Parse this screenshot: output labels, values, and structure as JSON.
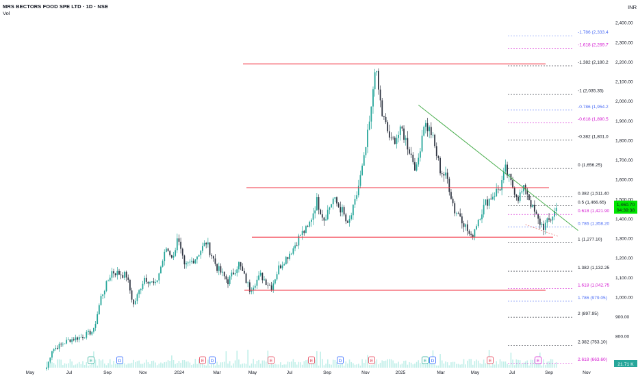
{
  "header": {
    "title": "MRS BECTORS FOOD SPE LTD · 1D · NSE",
    "volume_label": "Vol",
    "currency": "INR"
  },
  "chart_data": {
    "type": "candlestick",
    "x_tick_labels": [
      "May",
      "Jul",
      "Sep",
      "Nov",
      "2024",
      "Mar",
      "May",
      "Jul",
      "Sep",
      "Nov",
      "2025",
      "Mar",
      "May",
      "Jul",
      "Sep",
      "Nov"
    ],
    "y_ticks": [
      800,
      900,
      1000,
      1100,
      1200,
      1300,
      1400,
      1500,
      1600,
      1700,
      1800,
      1900,
      2000,
      2100,
      2200,
      2300,
      2400
    ],
    "ylim": [
      640,
      2460
    ],
    "price_path": [
      [
        0,
        640
      ],
      [
        3,
        730
      ],
      [
        12,
        780
      ],
      [
        20,
        800
      ],
      [
        26,
        830
      ],
      [
        30,
        1000
      ],
      [
        36,
        1130
      ],
      [
        44,
        1110
      ],
      [
        48,
        960
      ],
      [
        54,
        1100
      ],
      [
        60,
        1060
      ],
      [
        66,
        1250
      ],
      [
        70,
        1200
      ],
      [
        72,
        1310
      ],
      [
        76,
        1150
      ],
      [
        82,
        1200
      ],
      [
        88,
        1280
      ],
      [
        94,
        1150
      ],
      [
        100,
        1080
      ],
      [
        106,
        1170
      ],
      [
        112,
        1040
      ],
      [
        118,
        1110
      ],
      [
        124,
        1050
      ],
      [
        128,
        1150
      ],
      [
        132,
        1200
      ],
      [
        136,
        1250
      ],
      [
        140,
        1320
      ],
      [
        144,
        1350
      ],
      [
        149,
        1490
      ],
      [
        153,
        1400
      ],
      [
        158,
        1500
      ],
      [
        163,
        1440
      ],
      [
        166,
        1360
      ],
      [
        170,
        1480
      ],
      [
        175,
        1700
      ],
      [
        179,
        1950
      ],
      [
        181,
        2180
      ],
      [
        185,
        1930
      ],
      [
        190,
        1790
      ],
      [
        196,
        1850
      ],
      [
        200,
        1750
      ],
      [
        204,
        1650
      ],
      [
        208,
        1890
      ],
      [
        212,
        1840
      ],
      [
        217,
        1650
      ],
      [
        221,
        1600
      ],
      [
        225,
        1440
      ],
      [
        228,
        1420
      ],
      [
        231,
        1360
      ],
      [
        234,
        1300
      ],
      [
        238,
        1400
      ],
      [
        242,
        1480
      ],
      [
        246,
        1520
      ],
      [
        250,
        1560
      ],
      [
        253,
        1650
      ],
      [
        256,
        1580
      ],
      [
        260,
        1510
      ],
      [
        264,
        1560
      ],
      [
        268,
        1450
      ],
      [
        271,
        1390
      ],
      [
        274,
        1360
      ],
      [
        278,
        1400
      ],
      [
        281,
        1455
      ]
    ],
    "last_price": "1,460.70",
    "countdown": "04:39:38",
    "last_volume": "21.71 K",
    "horizontal_lines": [
      2190,
      1558,
      1306,
      1035
    ],
    "trendline": {
      "from": {
        "x": 205,
        "y": 1980
      },
      "to": {
        "x": 293,
        "y": 1340
      }
    },
    "fib_levels": [
      {
        "label": "-1.786 (2,333.4",
        "price": 2333.4,
        "color": "#4d6ef5"
      },
      {
        "label": "-1.618 (2,269.7",
        "price": 2269.7,
        "color": "#d418d0"
      },
      {
        "label": "-1.382 (2,180.2",
        "price": 2180.2,
        "color": "#131722"
      },
      {
        "label": "-1 (2,035.35)",
        "price": 2035.35,
        "color": "#131722"
      },
      {
        "label": "-0.786 (1,954.2",
        "price": 1954.2,
        "color": "#4d6ef5"
      },
      {
        "label": "-0.618 (1,890.5",
        "price": 1890.5,
        "color": "#d418d0"
      },
      {
        "label": "-0.382 (1,801.0",
        "price": 1801.0,
        "color": "#131722"
      },
      {
        "label": "0 (1,656.25)",
        "price": 1656.25,
        "color": "#131722"
      },
      {
        "label": "0.382 (1,511.40",
        "price": 1511.4,
        "color": "#131722"
      },
      {
        "label": "0.5 (1,466.65)",
        "price": 1466.65,
        "color": "#131722"
      },
      {
        "label": "0.618 (1,421.90",
        "price": 1421.9,
        "color": "#d418d0"
      },
      {
        "label": "0.786 (1,358.20",
        "price": 1358.2,
        "color": "#4d6ef5"
      },
      {
        "label": "1 (1,277.10)",
        "price": 1277.1,
        "color": "#131722"
      },
      {
        "label": "1.382 (1,132.25",
        "price": 1132.25,
        "color": "#131722"
      },
      {
        "label": "1.618 (1,042.75",
        "price": 1042.75,
        "color": "#d418d0"
      },
      {
        "label": "1.786 (979.05)",
        "price": 979.05,
        "color": "#4d6ef5"
      },
      {
        "label": "2 (897.95)",
        "price": 897.95,
        "color": "#131722"
      },
      {
        "label": "2.382 (753.10)",
        "price": 753.1,
        "color": "#131722"
      },
      {
        "label": "2.618 (663.60)",
        "price": 663.6,
        "color": "#d418d0"
      }
    ],
    "event_markers": [
      {
        "letter": "E",
        "color": "#22ab94"
      },
      {
        "letter": "D",
        "color": "#2962ff"
      },
      {
        "letter": "E",
        "color": "#e63950"
      },
      {
        "letter": "D",
        "color": "#2962ff"
      },
      {
        "letter": "E",
        "color": "#e63950"
      },
      {
        "letter": "E",
        "color": "#e63950"
      },
      {
        "letter": "D",
        "color": "#2962ff"
      },
      {
        "letter": "E",
        "color": "#e63950"
      },
      {
        "letter": "E",
        "color": "#22ab94"
      },
      {
        "letter": "D",
        "color": "#2962ff"
      },
      {
        "letter": "E",
        "color": "#e63950"
      },
      {
        "letter": "E",
        "color": "#d418d0"
      }
    ],
    "colors": {
      "up": "#26a69a",
      "down": "#2f3542",
      "level": "#f23645",
      "trend": "#4caf50",
      "price_tag": "#00e600"
    },
    "grid": false
  }
}
